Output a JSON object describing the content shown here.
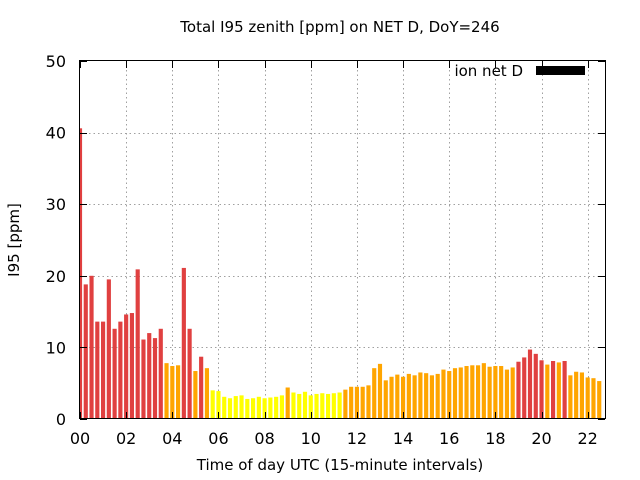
{
  "chart_data": {
    "type": "bar",
    "title": "Total I95 zenith [ppm] on NET D, DoY=246",
    "xlabel": "Time of day UTC (15-minute intervals)",
    "ylabel": "I95 [ppm]",
    "xlim": [
      0,
      22.75
    ],
    "ylim": [
      0,
      50
    ],
    "grid": true,
    "legend_position": "top-right",
    "legend": [
      {
        "name": "ion net D",
        "color": "#000000"
      }
    ],
    "x_ticks": [
      {
        "value": 0,
        "label": "00"
      },
      {
        "value": 2,
        "label": "02"
      },
      {
        "value": 4,
        "label": "04"
      },
      {
        "value": 6,
        "label": "06"
      },
      {
        "value": 8,
        "label": "08"
      },
      {
        "value": 10,
        "label": "10"
      },
      {
        "value": 12,
        "label": "12"
      },
      {
        "value": 14,
        "label": "14"
      },
      {
        "value": 16,
        "label": "16"
      },
      {
        "value": 18,
        "label": "18"
      },
      {
        "value": 20,
        "label": "20"
      },
      {
        "value": 22,
        "label": "22"
      }
    ],
    "y_ticks": [
      {
        "value": 0,
        "label": "0"
      },
      {
        "value": 10,
        "label": "10"
      },
      {
        "value": 20,
        "label": "20"
      },
      {
        "value": 30,
        "label": "30"
      },
      {
        "value": 40,
        "label": "40"
      },
      {
        "value": 50,
        "label": "50"
      }
    ],
    "colors": {
      "red": "#e04040",
      "orange": "#ffa500",
      "yellow": "#ffff00"
    },
    "bar_width_hours": 0.18,
    "bars": [
      {
        "x": 0.0,
        "value": 40.6,
        "color": "red"
      },
      {
        "x": 0.25,
        "value": 18.8,
        "color": "red"
      },
      {
        "x": 0.5,
        "value": 20.0,
        "color": "red"
      },
      {
        "x": 0.75,
        "value": 13.6,
        "color": "red"
      },
      {
        "x": 1.0,
        "value": 13.6,
        "color": "red"
      },
      {
        "x": 1.25,
        "value": 19.5,
        "color": "red"
      },
      {
        "x": 1.5,
        "value": 12.6,
        "color": "red"
      },
      {
        "x": 1.75,
        "value": 13.6,
        "color": "red"
      },
      {
        "x": 2.0,
        "value": 14.6,
        "color": "red"
      },
      {
        "x": 2.25,
        "value": 14.8,
        "color": "red"
      },
      {
        "x": 2.5,
        "value": 20.9,
        "color": "red"
      },
      {
        "x": 2.75,
        "value": 11.1,
        "color": "red"
      },
      {
        "x": 3.0,
        "value": 12.0,
        "color": "red"
      },
      {
        "x": 3.25,
        "value": 11.3,
        "color": "red"
      },
      {
        "x": 3.5,
        "value": 12.6,
        "color": "red"
      },
      {
        "x": 3.75,
        "value": 7.8,
        "color": "orange"
      },
      {
        "x": 4.0,
        "value": 7.4,
        "color": "orange"
      },
      {
        "x": 4.25,
        "value": 7.5,
        "color": "orange"
      },
      {
        "x": 4.5,
        "value": 21.1,
        "color": "red"
      },
      {
        "x": 4.75,
        "value": 12.6,
        "color": "red"
      },
      {
        "x": 5.0,
        "value": 6.7,
        "color": "orange"
      },
      {
        "x": 5.25,
        "value": 8.7,
        "color": "red"
      },
      {
        "x": 5.5,
        "value": 7.1,
        "color": "orange"
      },
      {
        "x": 5.75,
        "value": 4.0,
        "color": "yellow"
      },
      {
        "x": 6.0,
        "value": 3.9,
        "color": "yellow"
      },
      {
        "x": 6.25,
        "value": 3.1,
        "color": "yellow"
      },
      {
        "x": 6.5,
        "value": 2.9,
        "color": "yellow"
      },
      {
        "x": 6.75,
        "value": 3.2,
        "color": "yellow"
      },
      {
        "x": 7.0,
        "value": 3.3,
        "color": "yellow"
      },
      {
        "x": 7.25,
        "value": 2.8,
        "color": "yellow"
      },
      {
        "x": 7.5,
        "value": 2.9,
        "color": "yellow"
      },
      {
        "x": 7.75,
        "value": 3.1,
        "color": "yellow"
      },
      {
        "x": 8.0,
        "value": 2.9,
        "color": "yellow"
      },
      {
        "x": 8.25,
        "value": 3.0,
        "color": "yellow"
      },
      {
        "x": 8.5,
        "value": 3.1,
        "color": "yellow"
      },
      {
        "x": 8.75,
        "value": 3.3,
        "color": "yellow"
      },
      {
        "x": 9.0,
        "value": 4.4,
        "color": "orange"
      },
      {
        "x": 9.25,
        "value": 3.7,
        "color": "yellow"
      },
      {
        "x": 9.5,
        "value": 3.5,
        "color": "yellow"
      },
      {
        "x": 9.75,
        "value": 3.8,
        "color": "yellow"
      },
      {
        "x": 10.0,
        "value": 3.3,
        "color": "yellow"
      },
      {
        "x": 10.25,
        "value": 3.5,
        "color": "yellow"
      },
      {
        "x": 10.5,
        "value": 3.6,
        "color": "yellow"
      },
      {
        "x": 10.75,
        "value": 3.5,
        "color": "yellow"
      },
      {
        "x": 11.0,
        "value": 3.6,
        "color": "yellow"
      },
      {
        "x": 11.25,
        "value": 3.7,
        "color": "yellow"
      },
      {
        "x": 11.5,
        "value": 4.1,
        "color": "orange"
      },
      {
        "x": 11.75,
        "value": 4.5,
        "color": "orange"
      },
      {
        "x": 12.0,
        "value": 4.5,
        "color": "orange"
      },
      {
        "x": 12.25,
        "value": 4.5,
        "color": "orange"
      },
      {
        "x": 12.5,
        "value": 4.7,
        "color": "orange"
      },
      {
        "x": 12.75,
        "value": 7.1,
        "color": "orange"
      },
      {
        "x": 13.0,
        "value": 7.7,
        "color": "orange"
      },
      {
        "x": 13.25,
        "value": 5.4,
        "color": "orange"
      },
      {
        "x": 13.5,
        "value": 5.9,
        "color": "orange"
      },
      {
        "x": 13.75,
        "value": 6.2,
        "color": "orange"
      },
      {
        "x": 14.0,
        "value": 5.9,
        "color": "orange"
      },
      {
        "x": 14.25,
        "value": 6.3,
        "color": "orange"
      },
      {
        "x": 14.5,
        "value": 6.1,
        "color": "orange"
      },
      {
        "x": 14.75,
        "value": 6.5,
        "color": "orange"
      },
      {
        "x": 15.0,
        "value": 6.4,
        "color": "orange"
      },
      {
        "x": 15.25,
        "value": 6.1,
        "color": "orange"
      },
      {
        "x": 15.5,
        "value": 6.3,
        "color": "orange"
      },
      {
        "x": 15.75,
        "value": 6.9,
        "color": "orange"
      },
      {
        "x": 16.0,
        "value": 6.7,
        "color": "orange"
      },
      {
        "x": 16.25,
        "value": 7.1,
        "color": "orange"
      },
      {
        "x": 16.5,
        "value": 7.2,
        "color": "orange"
      },
      {
        "x": 16.75,
        "value": 7.4,
        "color": "orange"
      },
      {
        "x": 17.0,
        "value": 7.5,
        "color": "orange"
      },
      {
        "x": 17.25,
        "value": 7.5,
        "color": "orange"
      },
      {
        "x": 17.5,
        "value": 7.8,
        "color": "orange"
      },
      {
        "x": 17.75,
        "value": 7.3,
        "color": "orange"
      },
      {
        "x": 18.0,
        "value": 7.4,
        "color": "orange"
      },
      {
        "x": 18.25,
        "value": 7.4,
        "color": "orange"
      },
      {
        "x": 18.5,
        "value": 6.9,
        "color": "orange"
      },
      {
        "x": 18.75,
        "value": 7.2,
        "color": "orange"
      },
      {
        "x": 19.0,
        "value": 8.0,
        "color": "red"
      },
      {
        "x": 19.25,
        "value": 8.6,
        "color": "red"
      },
      {
        "x": 19.5,
        "value": 9.7,
        "color": "red"
      },
      {
        "x": 19.75,
        "value": 9.1,
        "color": "red"
      },
      {
        "x": 20.0,
        "value": 8.2,
        "color": "red"
      },
      {
        "x": 20.25,
        "value": 7.6,
        "color": "orange"
      },
      {
        "x": 20.5,
        "value": 8.1,
        "color": "red"
      },
      {
        "x": 20.75,
        "value": 7.9,
        "color": "orange"
      },
      {
        "x": 21.0,
        "value": 8.1,
        "color": "red"
      },
      {
        "x": 21.25,
        "value": 6.1,
        "color": "orange"
      },
      {
        "x": 21.5,
        "value": 6.6,
        "color": "orange"
      },
      {
        "x": 21.75,
        "value": 6.5,
        "color": "orange"
      },
      {
        "x": 22.0,
        "value": 5.8,
        "color": "orange"
      },
      {
        "x": 22.25,
        "value": 5.7,
        "color": "orange"
      },
      {
        "x": 22.5,
        "value": 5.3,
        "color": "orange"
      }
    ]
  }
}
